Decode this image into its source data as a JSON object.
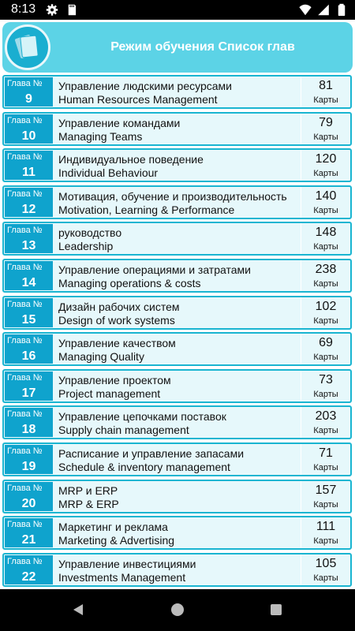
{
  "status": {
    "time": "8:13"
  },
  "header": {
    "title": "Режим обучения Список глав"
  },
  "chapter_prefix": "Глава №",
  "cards_unit": "Карты",
  "chapters": [
    {
      "num": "9",
      "ru": "Управление людскими ресурсами",
      "en": "Human Resources Management",
      "count": "81"
    },
    {
      "num": "10",
      "ru": "Управление командами",
      "en": "Managing Teams",
      "count": "79"
    },
    {
      "num": "11",
      "ru": "Индивидуальное поведение",
      "en": "Individual Behaviour",
      "count": "120"
    },
    {
      "num": "12",
      "ru": "Мотивация, обучение и производительность",
      "en": "Motivation, Learning & Performance",
      "count": "140"
    },
    {
      "num": "13",
      "ru": "руководство",
      "en": "Leadership",
      "count": "148"
    },
    {
      "num": "14",
      "ru": "Управление операциями и затратами",
      "en": "Managing operations & costs",
      "count": "238"
    },
    {
      "num": "15",
      "ru": "Дизайн рабочих систем",
      "en": "Design of work systems",
      "count": "102"
    },
    {
      "num": "16",
      "ru": "Управление качеством",
      "en": "Managing Quality",
      "count": "69"
    },
    {
      "num": "17",
      "ru": "Управление проектом",
      "en": "Project management",
      "count": "73"
    },
    {
      "num": "18",
      "ru": "Управление цепочками поставок",
      "en": "Supply chain management",
      "count": "203"
    },
    {
      "num": "19",
      "ru": "Расписание и управление запасами",
      "en": "Schedule & inventory management",
      "count": "71"
    },
    {
      "num": "20",
      "ru": "MRP и ERP",
      "en": "MRP & ERP",
      "count": "157"
    },
    {
      "num": "21",
      "ru": "Маркетинг и реклама",
      "en": "Marketing & Advertising",
      "count": "111"
    },
    {
      "num": "22",
      "ru": "Управление инвестициями",
      "en": "Investments Management",
      "count": "105"
    }
  ],
  "icons": {
    "status": [
      "gear-icon",
      "sd-card-icon",
      "wifi-icon",
      "signal-icon",
      "battery-icon"
    ],
    "nav": [
      "back-icon",
      "home-icon",
      "recents-icon"
    ]
  },
  "colors": {
    "header": "#5cd3e6",
    "chapter_badge": "#0fa3cd",
    "row_border": "#1ab5d1",
    "row_bg": "#e6f8fb"
  }
}
